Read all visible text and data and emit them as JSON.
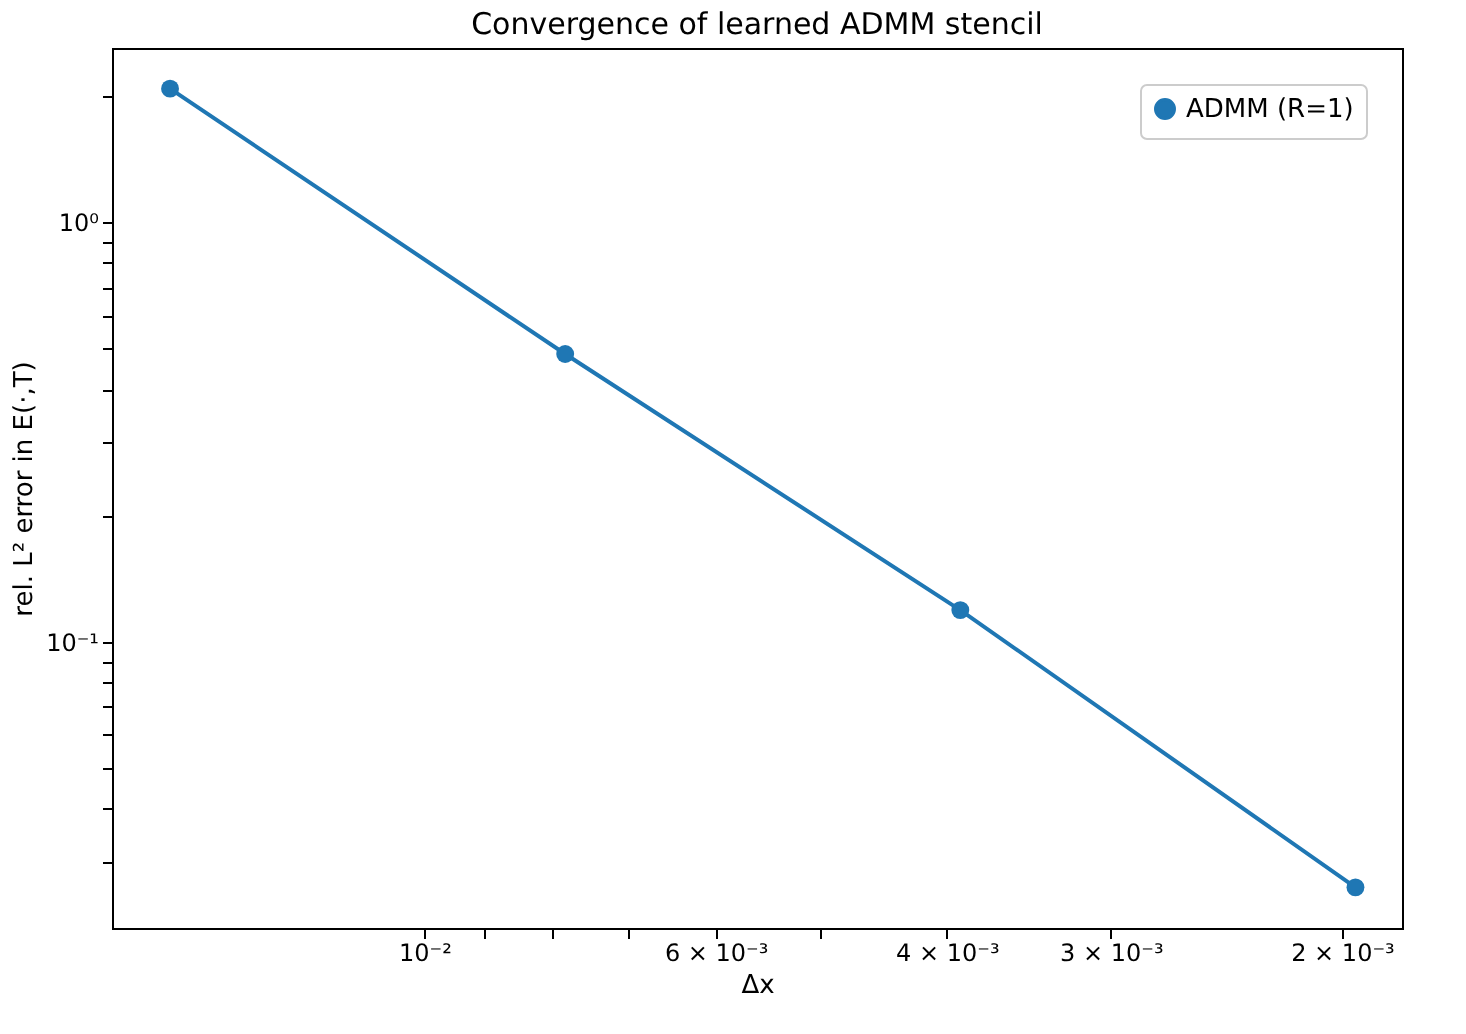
{
  "chart_data": {
    "type": "line",
    "title": "Convergence of learned ADMM stencil",
    "xlabel": "Δx",
    "ylabel": "rel. L² error in E(·,T)",
    "x": [
      0.015625,
      0.0078125,
      0.00390625,
      0.001953125
    ],
    "series": [
      {
        "name": "ADMM (R=1)",
        "color": "#1f77b4",
        "values": [
          2.08,
          0.485,
          0.119,
          0.026
        ]
      }
    ],
    "log": "xy",
    "marker": "circle",
    "line_style": "solid",
    "legend": "top right",
    "grid": false,
    "xlim": [
      0.0173,
      0.0018
    ],
    "xticks": [
      {
        "value": 0.01,
        "label": "10⁻²"
      },
      {
        "value": 0.009,
        "label": null
      },
      {
        "value": 0.008,
        "label": null
      },
      {
        "value": 0.007,
        "label": null
      },
      {
        "value": 0.006,
        "label": "6 × 10⁻³"
      },
      {
        "value": 0.005,
        "label": null
      },
      {
        "value": 0.004,
        "label": "4 × 10⁻³"
      },
      {
        "value": 0.003,
        "label": "3 × 10⁻³"
      },
      {
        "value": 0.002,
        "label": "2 × 10⁻³"
      }
    ],
    "ylim": [
      0.0208,
      2.6
    ],
    "yticks": [
      {
        "value": 1,
        "label": "10⁰"
      },
      {
        "value": 0.1,
        "label": "10⁻¹"
      },
      {
        "value": 2,
        "label": null
      },
      {
        "value": 0.9,
        "label": null
      },
      {
        "value": 0.8,
        "label": null
      },
      {
        "value": 0.7,
        "label": null
      },
      {
        "value": 0.6,
        "label": null
      },
      {
        "value": 0.5,
        "label": null
      },
      {
        "value": 0.4,
        "label": null
      },
      {
        "value": 0.3,
        "label": null
      },
      {
        "value": 0.2,
        "label": null
      },
      {
        "value": 0.09,
        "label": null
      },
      {
        "value": 0.08,
        "label": null
      },
      {
        "value": 0.07,
        "label": null
      },
      {
        "value": 0.06,
        "label": null
      },
      {
        "value": 0.05,
        "label": null
      },
      {
        "value": 0.04,
        "label": null
      },
      {
        "value": 0.03,
        "label": null
      }
    ]
  }
}
